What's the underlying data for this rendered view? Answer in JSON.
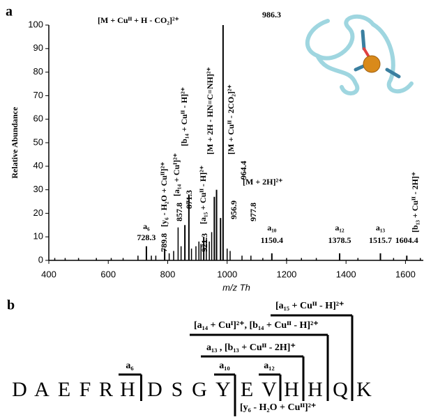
{
  "panel_a_label": "a",
  "chart_data": {
    "type": "spectrum",
    "xlabel": "m/z Th",
    "ylabel": "Relative Abundance",
    "color": "#000000",
    "x": [
      728.3,
      789.8,
      857.8,
      871.3,
      921.3,
      956.9,
      964.4,
      977.8,
      986.3,
      1150.4,
      1378.5,
      1515.7,
      1604.4
    ],
    "values": [
      6,
      5,
      15,
      28,
      10,
      27,
      30,
      18,
      100,
      3,
      3,
      3,
      2
    ],
    "ion_labels": [
      "a₆",
      "[y₆ - H₂O + Cuᴵᴵ]²⁺",
      "[a₁₄ + Cuᴵ]²⁺",
      "[b₁₄ + Cuᴵᴵ - H]²⁺",
      "[a₁₅ + Cuᴵᴵ - H]²⁺",
      "[M + 2H - HN=C=NH]²⁺",
      "[M + Cuᴵᴵ - 2CO₂]²⁺",
      "[M + 2H]²⁺",
      "[M + Cuᴵᴵ + H - CO₂]²⁺",
      "a₁₀",
      "a₁₂",
      "a₁₃",
      "[b₁₃ + Cuᴵᴵ - 2H]⁺"
    ],
    "minor_x": [
      420,
      455,
      500,
      560,
      610,
      650,
      700,
      745,
      760,
      805,
      820,
      835,
      845,
      880,
      895,
      905,
      912,
      930,
      940,
      948,
      1000,
      1010,
      1050,
      1080,
      1120,
      1200,
      1250,
      1300,
      1440,
      1560,
      1650
    ],
    "minor_values": [
      1,
      1,
      1,
      1,
      1,
      1,
      2,
      2,
      2,
      3,
      4,
      14,
      6,
      5,
      6,
      8,
      7,
      9,
      8,
      12,
      5,
      4,
      2,
      2,
      1,
      1,
      1,
      1,
      1,
      1,
      1
    ],
    "xlim": [
      400,
      1660
    ],
    "ylim": [
      0,
      100
    ],
    "xticks": [
      400,
      600,
      800,
      1000,
      1200,
      1400,
      1600
    ],
    "yticks": [
      0,
      10,
      20,
      30,
      40,
      50,
      60,
      70,
      80,
      90,
      100
    ]
  },
  "panel_b": {
    "label": "b",
    "sequence": [
      "D",
      "A",
      "E",
      "F",
      "R",
      "H",
      "D",
      "S",
      "G",
      "Y",
      "E",
      "V",
      "H",
      "H",
      "Q",
      "K"
    ],
    "fragments": [
      "a₆",
      "a₁₀",
      "a₁₂",
      "a₁₃ , [b₁₃ + Cuᴵᴵ - 2H]⁺",
      "[a₁₄ + Cuᴵ]²⁺, [b₁₄ + Cuᴵᴵ - H]²⁺",
      "[a₁₅ + Cuᴵᴵ - H]²⁺",
      "[y₆ - H₂O + Cuᴵᴵ]²⁺"
    ]
  }
}
